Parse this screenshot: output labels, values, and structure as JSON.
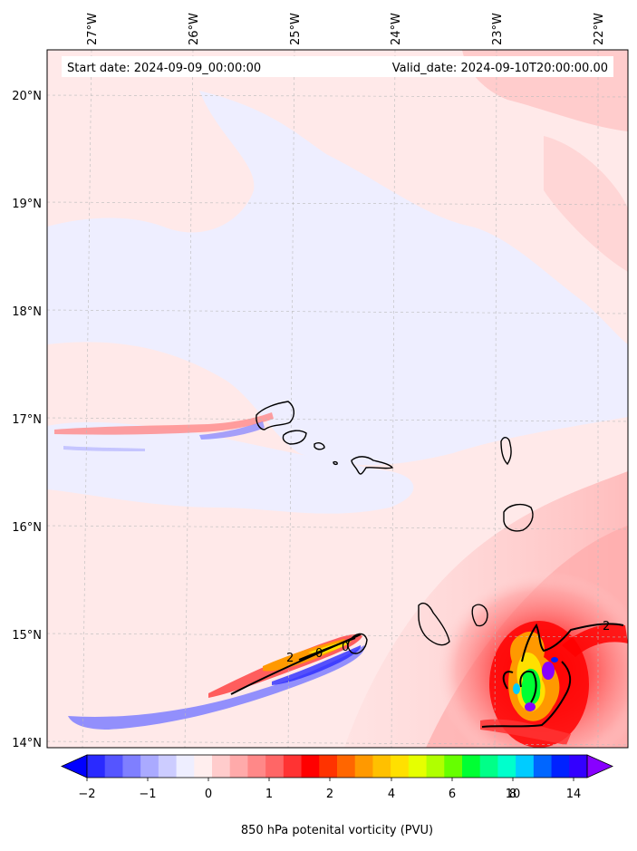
{
  "header": {
    "start_label": "Start date: 2024-09-09_00:00:00",
    "valid_label": "Valid_date: 2024-09-10T20:00:00.00"
  },
  "map": {
    "lon_labels": [
      "27°W",
      "26°W",
      "25°W",
      "24°W",
      "23°W",
      "22°W"
    ],
    "lat_labels": [
      "20°N",
      "19°N",
      "18°N",
      "17°N",
      "16°N",
      "15°N",
      "14°N"
    ],
    "contour_labels": [
      "2",
      "0",
      "0",
      "2"
    ]
  },
  "colorbar": {
    "tick_labels": [
      "−2",
      "−1",
      "0",
      "1",
      "2",
      "4",
      "6",
      "8",
      "10",
      "14"
    ],
    "title": "850 hPa potenital vorticity (PVU)",
    "colors": [
      "#0000ff",
      "#2a2aff",
      "#5555ff",
      "#7f7fff",
      "#aaaaff",
      "#ccccff",
      "#eeeeff",
      "#ffeeee",
      "#ffcccc",
      "#ffaaaa",
      "#ff8888",
      "#ff6666",
      "#ff3333",
      "#ff0000",
      "#ff3300",
      "#ff6600",
      "#ff9900",
      "#ffc000",
      "#ffe000",
      "#e6ff00",
      "#b0ff00",
      "#66ff00",
      "#00ff33",
      "#00ff88",
      "#00ffcc",
      "#00ccff",
      "#0066ff",
      "#0022ff",
      "#3300ff",
      "#8800ff"
    ]
  }
}
